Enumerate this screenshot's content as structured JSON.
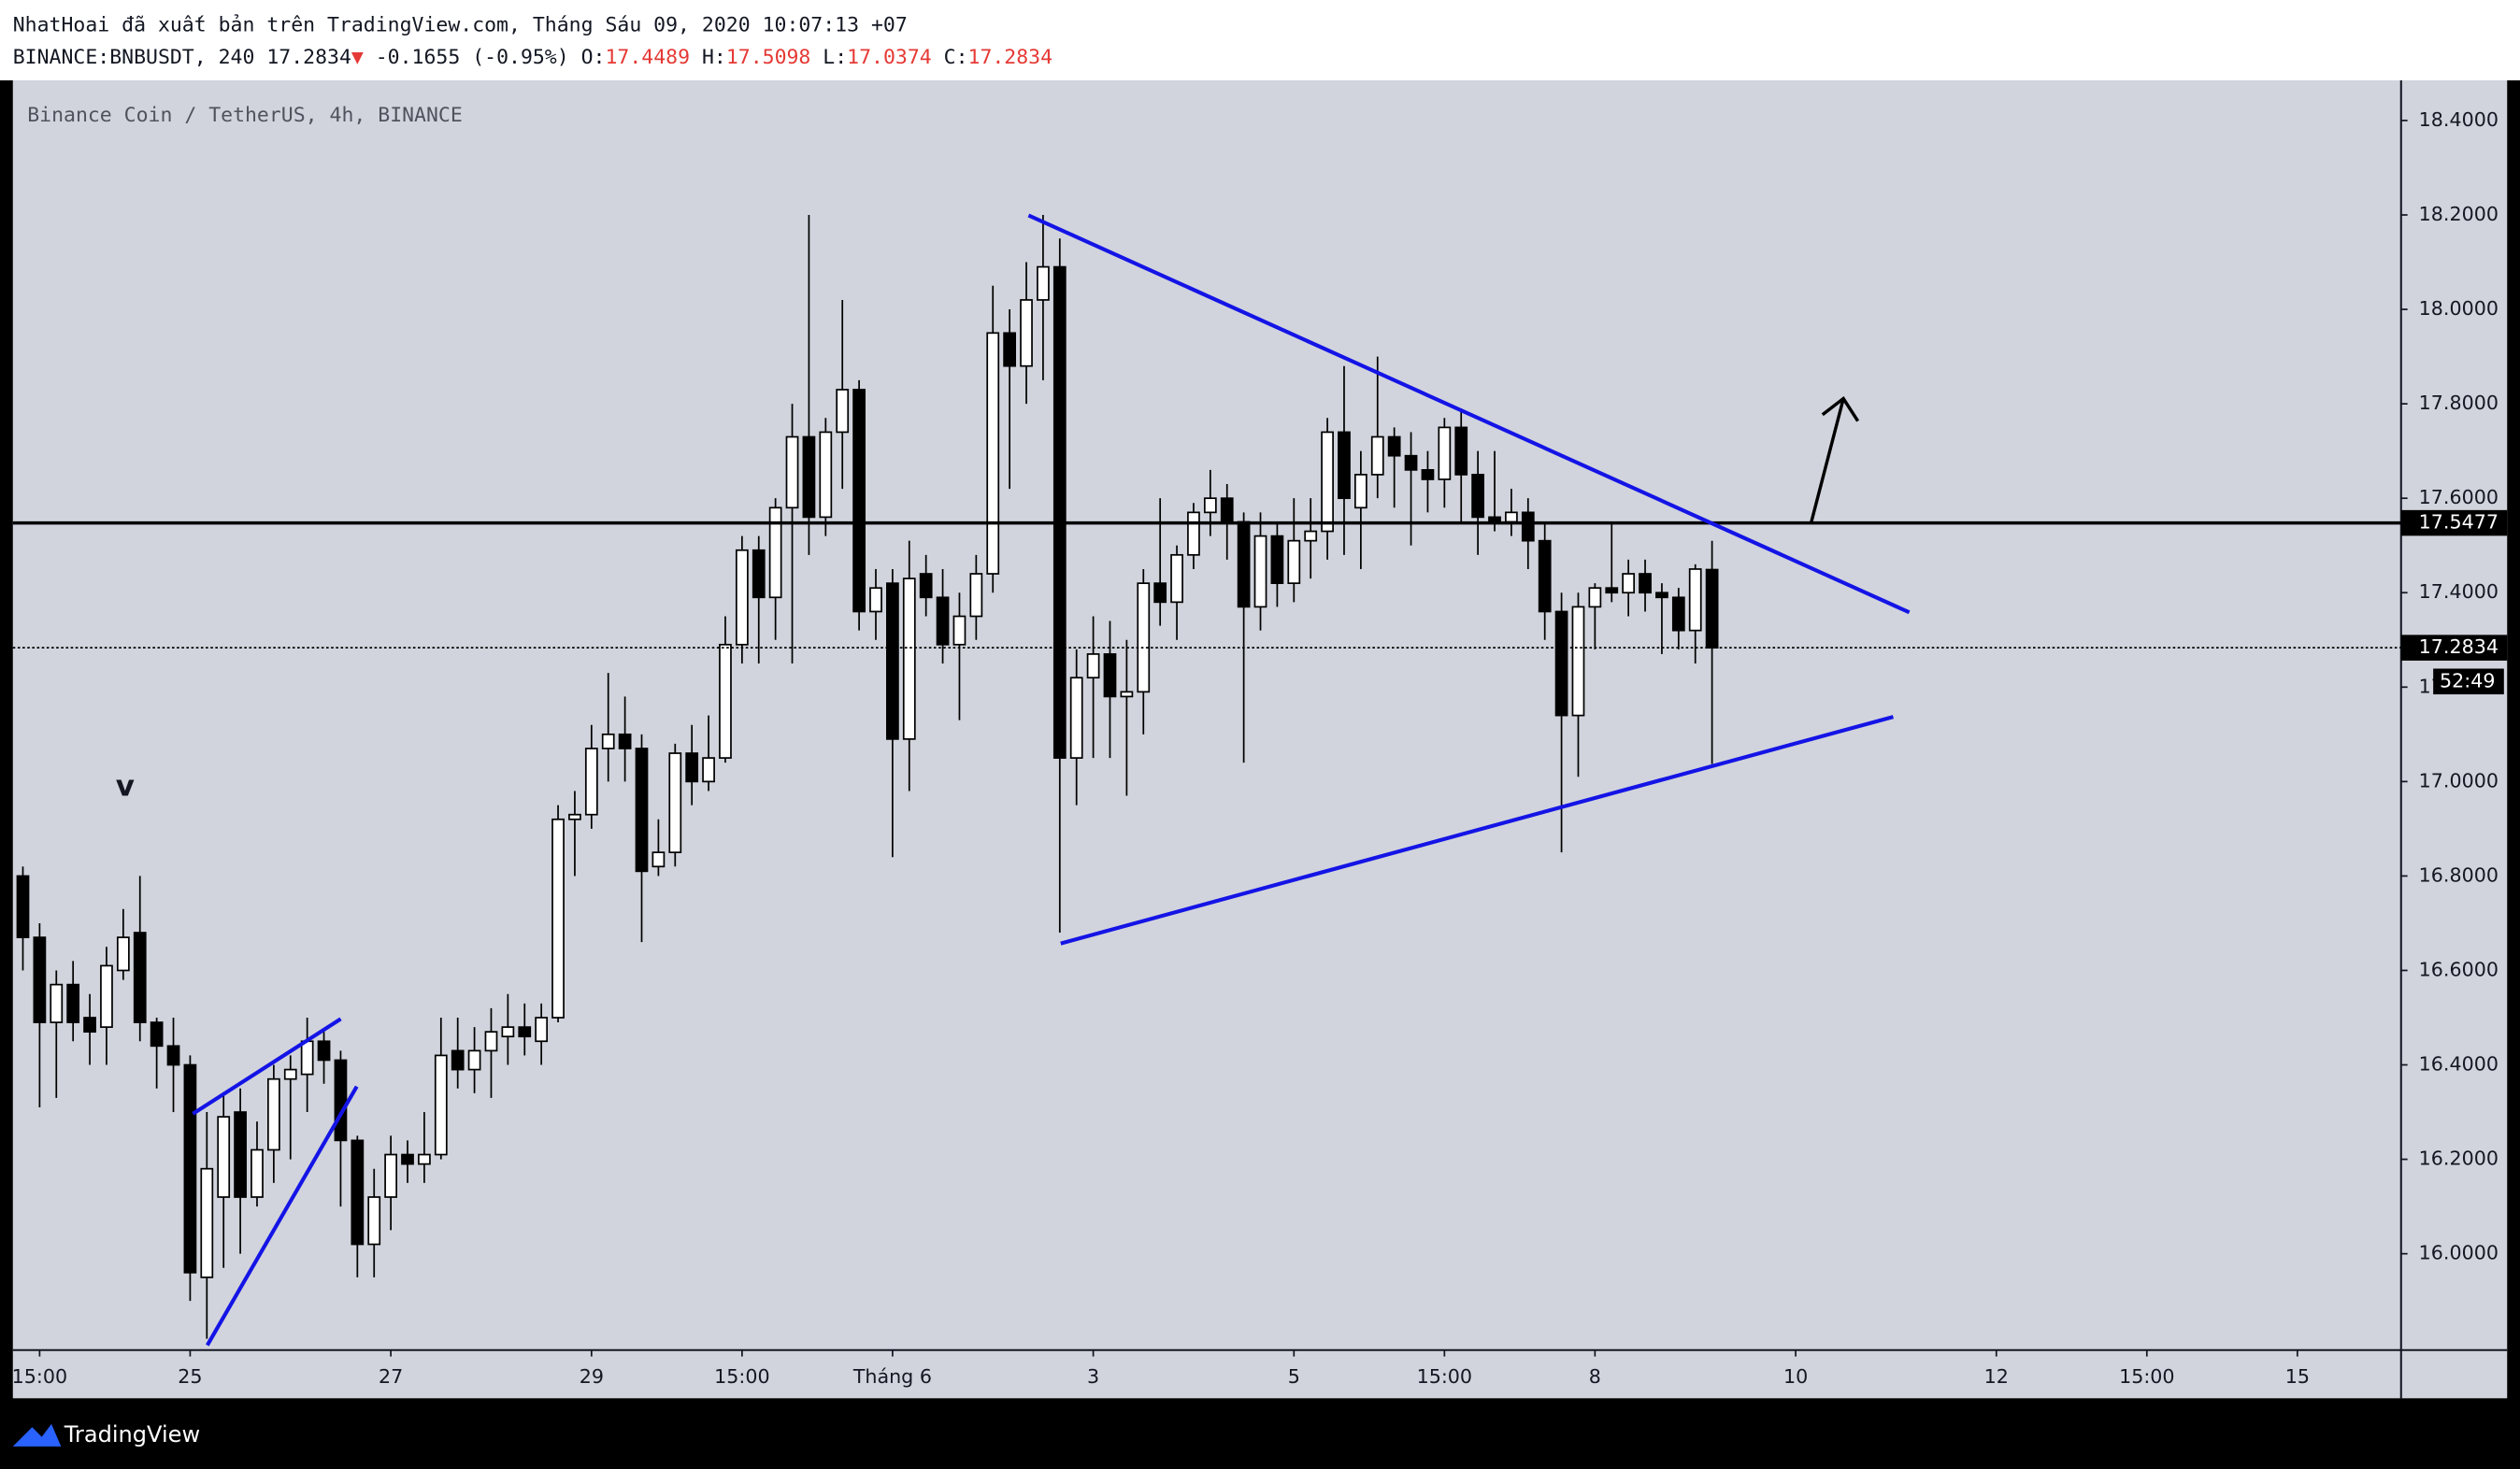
{
  "chart_data": {
    "type": "candlestick",
    "publisher_line": "NhatHoai đã xuất bản trên TradingView.com, Tháng Sáu 09, 2020 10:07:13 +07",
    "symbol": "BINANCE:BNBUSDT, 240",
    "last": 17.2834,
    "arrow": "▼",
    "change": "-0.1655 (-0.95%)",
    "ohlc_labels": [
      "O:",
      "H:",
      "L:",
      "C:"
    ],
    "ohlc": [
      17.4489,
      17.5098,
      17.0374,
      17.2834
    ],
    "title": "Binance Coin / TetherUS, 4h, BINANCE",
    "annotation": "v",
    "brand": "TradingView",
    "up_color": "#ffffff",
    "down_color": "#000000",
    "grid": false,
    "open": [
      16.8,
      16.67,
      16.49,
      16.57,
      16.5,
      16.48,
      16.6,
      16.68,
      16.49,
      16.44,
      16.4,
      15.95,
      16.12,
      16.3,
      16.12,
      16.22,
      16.37,
      16.38,
      16.45,
      16.41,
      16.24,
      16.02,
      16.12,
      16.21,
      16.19,
      16.21,
      16.43,
      16.39,
      16.43,
      16.46,
      16.48,
      16.45,
      16.5,
      16.92,
      16.93,
      17.07,
      17.1,
      17.07,
      16.82,
      16.85,
      17.06,
      17.0,
      17.05,
      17.29,
      17.49,
      17.39,
      17.58,
      17.73,
      17.56,
      17.74,
      17.83,
      17.36,
      17.42,
      17.09,
      17.44,
      17.39,
      17.29,
      17.35,
      17.44,
      17.95,
      17.88,
      18.02,
      18.09,
      17.05,
      17.22,
      17.27,
      17.18,
      17.19,
      17.42,
      17.38,
      17.48,
      17.57,
      17.6,
      17.55,
      17.37,
      17.52,
      17.42,
      17.51,
      17.53,
      17.74,
      17.58,
      17.65,
      17.73,
      17.69,
      17.66,
      17.64,
      17.75,
      17.65,
      17.56,
      17.55,
      17.57,
      17.51,
      17.36,
      17.14,
      17.37,
      17.41,
      17.4,
      17.44,
      17.4,
      17.39,
      17.32,
      17.4489
    ],
    "high": [
      16.82,
      16.7,
      16.6,
      16.62,
      16.55,
      16.65,
      16.73,
      16.8,
      16.5,
      16.5,
      16.42,
      16.3,
      16.34,
      16.35,
      16.28,
      16.4,
      16.42,
      16.5,
      16.47,
      16.43,
      16.25,
      16.18,
      16.25,
      16.24,
      16.3,
      16.5,
      16.5,
      16.48,
      16.52,
      16.55,
      16.53,
      16.53,
      16.95,
      16.98,
      17.12,
      17.23,
      17.18,
      17.1,
      16.92,
      17.08,
      17.12,
      17.14,
      17.35,
      17.52,
      17.52,
      17.6,
      17.8,
      18.2,
      17.77,
      18.02,
      17.85,
      17.45,
      17.45,
      17.51,
      17.48,
      17.45,
      17.4,
      17.48,
      18.05,
      18.0,
      18.1,
      18.2,
      18.15,
      17.28,
      17.35,
      17.34,
      17.3,
      17.45,
      17.6,
      17.5,
      17.59,
      17.66,
      17.63,
      17.57,
      17.57,
      17.55,
      17.6,
      17.6,
      17.77,
      17.88,
      17.7,
      17.9,
      17.75,
      17.74,
      17.7,
      17.77,
      17.79,
      17.7,
      17.7,
      17.62,
      17.6,
      17.55,
      17.4,
      17.4,
      17.42,
      17.55,
      17.47,
      17.47,
      17.42,
      17.41,
      17.46,
      17.5098
    ],
    "low": [
      16.6,
      16.31,
      16.33,
      16.45,
      16.4,
      16.4,
      16.58,
      16.45,
      16.35,
      16.3,
      15.9,
      15.82,
      15.97,
      16.0,
      16.1,
      16.15,
      16.2,
      16.3,
      16.36,
      16.1,
      15.95,
      15.95,
      16.05,
      16.15,
      16.15,
      16.2,
      16.35,
      16.34,
      16.33,
      16.4,
      16.42,
      16.4,
      16.49,
      16.8,
      16.9,
      17.0,
      17.0,
      16.66,
      16.8,
      16.82,
      16.95,
      16.98,
      17.04,
      17.25,
      17.25,
      17.3,
      17.25,
      17.48,
      17.52,
      17.62,
      17.32,
      17.3,
      16.84,
      16.98,
      17.35,
      17.25,
      17.13,
      17.3,
      17.4,
      17.62,
      17.8,
      17.85,
      16.68,
      16.95,
      17.05,
      17.05,
      16.97,
      17.1,
      17.33,
      17.3,
      17.45,
      17.52,
      17.47,
      17.04,
      17.32,
      17.37,
      17.38,
      17.43,
      17.47,
      17.48,
      17.45,
      17.6,
      17.58,
      17.5,
      17.57,
      17.58,
      17.55,
      17.48,
      17.53,
      17.52,
      17.45,
      17.3,
      16.85,
      17.01,
      17.28,
      17.38,
      17.35,
      17.36,
      17.27,
      17.28,
      17.25,
      17.0374
    ],
    "close": [
      16.67,
      16.49,
      16.57,
      16.49,
      16.47,
      16.61,
      16.67,
      16.49,
      16.44,
      16.4,
      15.96,
      16.18,
      16.29,
      16.12,
      16.22,
      16.37,
      16.39,
      16.45,
      16.41,
      16.24,
      16.02,
      16.12,
      16.21,
      16.19,
      16.21,
      16.42,
      16.39,
      16.43,
      16.47,
      16.48,
      16.46,
      16.5,
      16.92,
      16.93,
      17.07,
      17.1,
      17.07,
      16.81,
      16.85,
      17.06,
      17.0,
      17.05,
      17.29,
      17.49,
      17.39,
      17.58,
      17.73,
      17.56,
      17.74,
      17.83,
      17.36,
      17.41,
      17.09,
      17.43,
      17.39,
      17.29,
      17.35,
      17.44,
      17.95,
      17.88,
      18.02,
      18.09,
      17.05,
      17.22,
      17.27,
      17.18,
      17.19,
      17.42,
      17.38,
      17.48,
      17.57,
      17.6,
      17.55,
      17.37,
      17.52,
      17.42,
      17.51,
      17.53,
      17.74,
      17.6,
      17.65,
      17.73,
      17.69,
      17.66,
      17.64,
      17.75,
      17.65,
      17.56,
      17.55,
      17.57,
      17.51,
      17.36,
      17.14,
      17.37,
      17.41,
      17.4,
      17.44,
      17.4,
      17.39,
      17.32,
      17.45,
      17.2834
    ],
    "xlim": [
      -0.6,
      142.2
    ],
    "xticks": [
      {
        "value": 1,
        "label": "15:00"
      },
      {
        "value": 10,
        "label": "25"
      },
      {
        "value": 22,
        "label": "27"
      },
      {
        "value": 34,
        "label": "29"
      },
      {
        "value": 43,
        "label": "15:00"
      },
      {
        "value": 52,
        "label": "Tháng 6"
      },
      {
        "value": 64,
        "label": "3"
      },
      {
        "value": 76,
        "label": "5"
      },
      {
        "value": 85,
        "label": "15:00"
      },
      {
        "value": 94,
        "label": "8"
      },
      {
        "value": 106,
        "label": "10"
      },
      {
        "value": 118,
        "label": "12"
      },
      {
        "value": 127,
        "label": "15:00"
      },
      {
        "value": 136,
        "label": "15"
      }
    ],
    "ylim": [
      15.796,
      18.485
    ],
    "yticks": [
      {
        "value": 16.0,
        "label": "16.0000"
      },
      {
        "value": 16.2,
        "label": "16.2000"
      },
      {
        "value": 16.4,
        "label": "16.4000"
      },
      {
        "value": 16.6,
        "label": "16.6000"
      },
      {
        "value": 16.8,
        "label": "16.8000"
      },
      {
        "value": 17.0,
        "label": "17.0000"
      },
      {
        "value": 17.2,
        "label": "17.2000"
      },
      {
        "value": 17.4,
        "label": "17.4000"
      },
      {
        "value": 17.6,
        "label": "17.6000"
      },
      {
        "value": 17.8,
        "label": "17.8000"
      },
      {
        "value": 18.0,
        "label": "18.0000"
      },
      {
        "value": 18.2,
        "label": "18.2000"
      },
      {
        "value": 18.4,
        "label": "18.4000"
      }
    ],
    "price_line": 17.5477,
    "last_price": 17.2834,
    "countdown": "52:49"
  }
}
